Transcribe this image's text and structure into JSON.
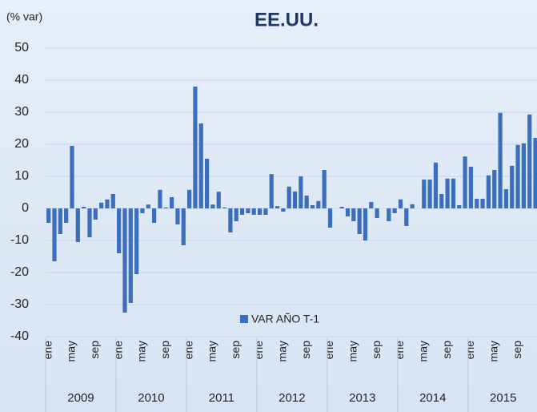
{
  "chart_data": {
    "type": "bar",
    "title": "EE.UU.",
    "y_label": "(% var)",
    "categories": [
      "ene",
      null,
      null,
      null,
      "may",
      null,
      null,
      null,
      "sep",
      null,
      null,
      null,
      "ene",
      null,
      null,
      null,
      "may",
      null,
      null,
      null,
      "sep",
      null,
      null,
      null,
      "ene",
      null,
      null,
      null,
      "may",
      null,
      null,
      null,
      "sep",
      null,
      null,
      null,
      "ene",
      null,
      null,
      null,
      "may",
      null,
      null,
      null,
      "sep",
      null,
      null,
      null,
      "ene",
      null,
      null,
      null,
      "may",
      null,
      null,
      null,
      "sep",
      null,
      null,
      null,
      "ene",
      null,
      null,
      null,
      "may",
      null,
      null,
      null,
      "sep",
      null,
      null,
      null,
      "ene",
      null,
      null,
      null,
      "may",
      null,
      null,
      null,
      "sep",
      null,
      null,
      null
    ],
    "groups": [
      "2009",
      "2010",
      "2011",
      "2012",
      "2013",
      "2014",
      "2015"
    ],
    "series": [
      {
        "name": "VAR AÑO T-1",
        "color": "#3b6fbe",
        "values": [
          -4.5,
          -16.5,
          -8,
          -4.5,
          19.5,
          -10.5,
          0.5,
          -9,
          -3.5,
          1.8,
          2.8,
          4.5,
          -14,
          -32.5,
          -29.5,
          -20.5,
          -1.5,
          1.2,
          -4.5,
          5.8,
          0.3,
          3.5,
          -5,
          -11.5,
          5.8,
          38,
          26.5,
          15.5,
          1.2,
          5.2,
          0.3,
          -7.5,
          -4,
          -2,
          -1.5,
          -2,
          -2,
          -2,
          10.7,
          0.7,
          -1,
          6.8,
          5.3,
          10,
          4,
          1,
          2.3,
          12,
          -6,
          0,
          0.5,
          -2.5,
          -4,
          -8,
          -10,
          2,
          -3,
          0,
          -4,
          -1.5,
          2.8,
          -5.5,
          1.3,
          0,
          9,
          9,
          14.3,
          4.5,
          9.3,
          9.3,
          1,
          16.2,
          13,
          3,
          3,
          10.3,
          12,
          29.8,
          6,
          13.3,
          19.8,
          20.3,
          29.3,
          22
        ]
      }
    ],
    "ylim": [
      -40,
      50
    ],
    "yticks": [
      -40,
      -30,
      -20,
      -10,
      0,
      10,
      20,
      30,
      40,
      50
    ],
    "grid": true
  }
}
